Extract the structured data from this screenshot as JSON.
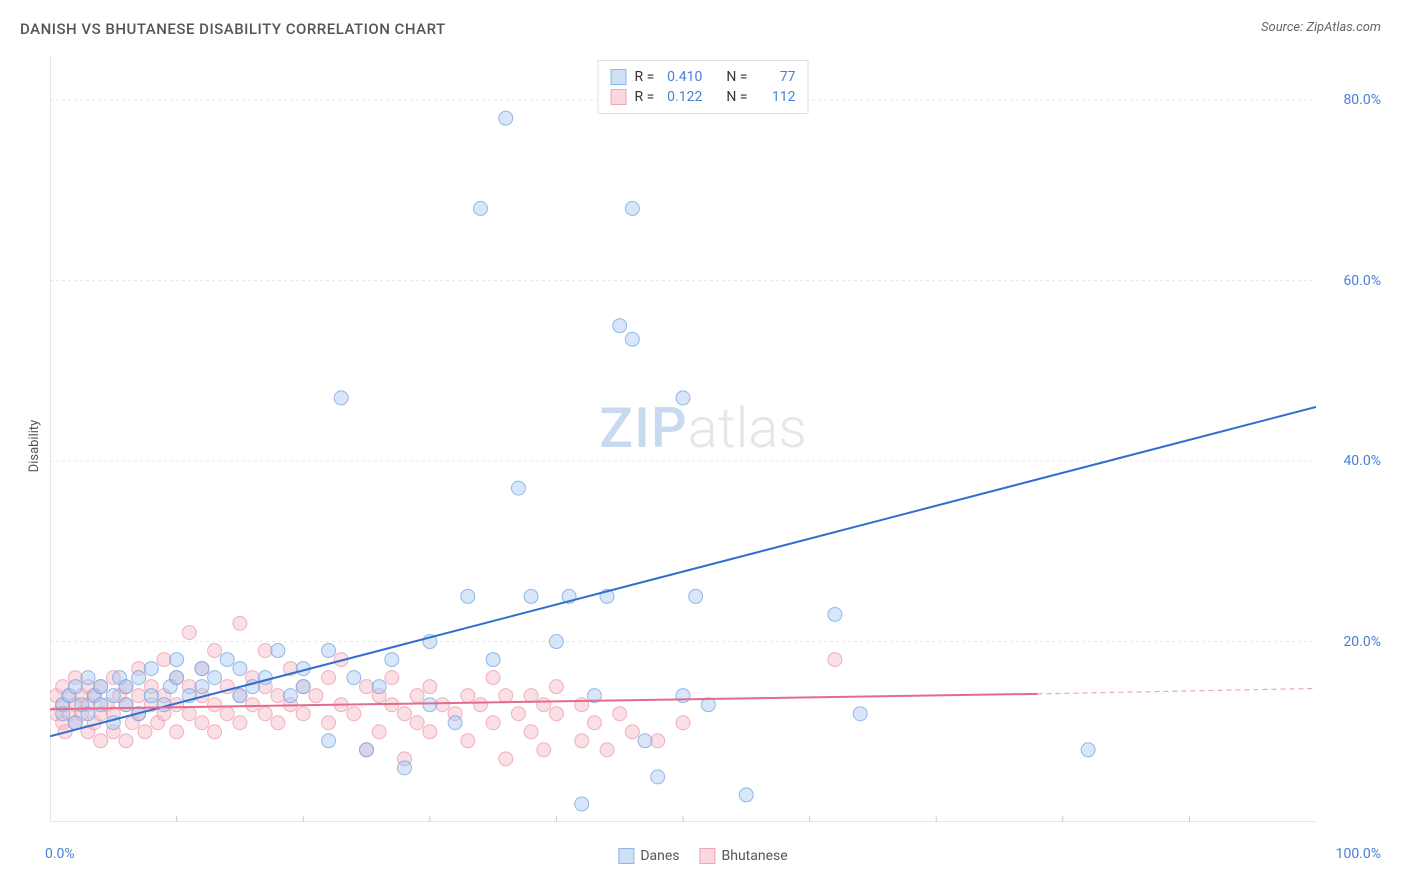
{
  "title": "DANISH VS BHUTANESE DISABILITY CORRELATION CHART",
  "source_label": "Source: ZipAtlas.com",
  "ylabel": "Disability",
  "watermark": {
    "part1": "ZIP",
    "part2": "atlas"
  },
  "chart": {
    "type": "scatter",
    "xlim": [
      0,
      100
    ],
    "ylim": [
      0,
      85
    ],
    "x_tick_labels": {
      "left": "0.0%",
      "right": "100.0%"
    },
    "x_ticks_minor": [
      10,
      20,
      30,
      40,
      50,
      60,
      70,
      80,
      90
    ],
    "y_ticks": [
      {
        "value": 20,
        "label": "20.0%"
      },
      {
        "value": 40,
        "label": "40.0%"
      },
      {
        "value": 60,
        "label": "60.0%"
      },
      {
        "value": 80,
        "label": "80.0%"
      }
    ],
    "grid_color": "#e8e8e8",
    "grid_dash": "3,3",
    "axis_color": "#cccccc",
    "background": "#ffffff",
    "tick_label_color": "#4a7fd6",
    "marker_radius": 7,
    "marker_opacity": 0.45,
    "line_width": 2,
    "series": [
      {
        "name": "Danes",
        "short": "Danes",
        "color_fill": "#a7c7f2",
        "color_stroke": "#6da0e0",
        "line_color": "#2f6fd0",
        "swatch_fill": "#cfe0f7",
        "swatch_border": "#8fb5e8",
        "R": "0.410",
        "N": "77",
        "trend": {
          "x1": 0,
          "y1": 9.5,
          "x2": 100,
          "y2": 46,
          "dash_from_x": 100
        },
        "points": [
          [
            1,
            13
          ],
          [
            1,
            12
          ],
          [
            1.5,
            14
          ],
          [
            2,
            11
          ],
          [
            2,
            15
          ],
          [
            2.5,
            13
          ],
          [
            3,
            12
          ],
          [
            3,
            16
          ],
          [
            3.5,
            14
          ],
          [
            4,
            13
          ],
          [
            4,
            15
          ],
          [
            5,
            11
          ],
          [
            5,
            14
          ],
          [
            5.5,
            16
          ],
          [
            6,
            13
          ],
          [
            6,
            15
          ],
          [
            7,
            12
          ],
          [
            7,
            16
          ],
          [
            8,
            14
          ],
          [
            8,
            17
          ],
          [
            9,
            13
          ],
          [
            9.5,
            15
          ],
          [
            10,
            16
          ],
          [
            10,
            18
          ],
          [
            11,
            14
          ],
          [
            12,
            17
          ],
          [
            12,
            15
          ],
          [
            13,
            16
          ],
          [
            14,
            18
          ],
          [
            15,
            14
          ],
          [
            15,
            17
          ],
          [
            16,
            15
          ],
          [
            17,
            16
          ],
          [
            18,
            19
          ],
          [
            19,
            14
          ],
          [
            20,
            17
          ],
          [
            20,
            15
          ],
          [
            22,
            19
          ],
          [
            22,
            9
          ],
          [
            23,
            47
          ],
          [
            24,
            16
          ],
          [
            25,
            8
          ],
          [
            26,
            15
          ],
          [
            27,
            18
          ],
          [
            28,
            6
          ],
          [
            30,
            13
          ],
          [
            30,
            20
          ],
          [
            32,
            11
          ],
          [
            33,
            25
          ],
          [
            34,
            68
          ],
          [
            35,
            18
          ],
          [
            36,
            78
          ],
          [
            37,
            37
          ],
          [
            38,
            25
          ],
          [
            40,
            20
          ],
          [
            41,
            25
          ],
          [
            42,
            2
          ],
          [
            43,
            14
          ],
          [
            44,
            25
          ],
          [
            45,
            55
          ],
          [
            46,
            53.5
          ],
          [
            46,
            68
          ],
          [
            47,
            9
          ],
          [
            48,
            5
          ],
          [
            50,
            47
          ],
          [
            50,
            14
          ],
          [
            51,
            25
          ],
          [
            52,
            13
          ],
          [
            55,
            3
          ],
          [
            62,
            23
          ],
          [
            64,
            12
          ],
          [
            82,
            8
          ]
        ]
      },
      {
        "name": "Bhutanese",
        "short": "Bhutanese",
        "color_fill": "#f5b8c6",
        "color_stroke": "#e996ab",
        "line_color": "#e56b8a",
        "swatch_fill": "#fad6df",
        "swatch_border": "#f0a6b9",
        "R": "0.122",
        "N": "112",
        "trend": {
          "x1": 0,
          "y1": 12.5,
          "x2": 78,
          "y2": 14.2,
          "dash_from_x": 78,
          "dash_x2": 100,
          "dash_y2": 14.8
        },
        "points": [
          [
            0.5,
            12
          ],
          [
            0.5,
            14
          ],
          [
            1,
            11
          ],
          [
            1,
            13
          ],
          [
            1,
            15
          ],
          [
            1.2,
            10
          ],
          [
            1.5,
            12
          ],
          [
            1.5,
            14
          ],
          [
            2,
            11
          ],
          [
            2,
            13
          ],
          [
            2,
            16
          ],
          [
            2.5,
            12
          ],
          [
            2.5,
            14
          ],
          [
            3,
            10
          ],
          [
            3,
            13
          ],
          [
            3,
            15
          ],
          [
            3.5,
            11
          ],
          [
            3.5,
            14
          ],
          [
            4,
            9
          ],
          [
            4,
            12
          ],
          [
            4,
            15
          ],
          [
            4.5,
            13
          ],
          [
            5,
            10
          ],
          [
            5,
            12
          ],
          [
            5,
            16
          ],
          [
            5.5,
            14
          ],
          [
            6,
            9
          ],
          [
            6,
            13
          ],
          [
            6,
            15
          ],
          [
            6.5,
            11
          ],
          [
            7,
            12
          ],
          [
            7,
            14
          ],
          [
            7,
            17
          ],
          [
            7.5,
            10
          ],
          [
            8,
            13
          ],
          [
            8,
            15
          ],
          [
            8.5,
            11
          ],
          [
            9,
            12
          ],
          [
            9,
            14
          ],
          [
            9,
            18
          ],
          [
            10,
            10
          ],
          [
            10,
            13
          ],
          [
            10,
            16
          ],
          [
            11,
            12
          ],
          [
            11,
            15
          ],
          [
            11,
            21
          ],
          [
            12,
            11
          ],
          [
            12,
            14
          ],
          [
            12,
            17
          ],
          [
            13,
            10
          ],
          [
            13,
            13
          ],
          [
            13,
            19
          ],
          [
            14,
            12
          ],
          [
            14,
            15
          ],
          [
            15,
            11
          ],
          [
            15,
            14
          ],
          [
            15,
            22
          ],
          [
            16,
            13
          ],
          [
            16,
            16
          ],
          [
            17,
            12
          ],
          [
            17,
            15
          ],
          [
            17,
            19
          ],
          [
            18,
            11
          ],
          [
            18,
            14
          ],
          [
            19,
            13
          ],
          [
            19,
            17
          ],
          [
            20,
            12
          ],
          [
            20,
            15
          ],
          [
            21,
            14
          ],
          [
            22,
            11
          ],
          [
            22,
            16
          ],
          [
            23,
            13
          ],
          [
            23,
            18
          ],
          [
            24,
            12
          ],
          [
            25,
            15
          ],
          [
            25,
            8
          ],
          [
            26,
            10
          ],
          [
            26,
            14
          ],
          [
            27,
            13
          ],
          [
            27,
            16
          ],
          [
            28,
            12
          ],
          [
            28,
            7
          ],
          [
            29,
            14
          ],
          [
            29,
            11
          ],
          [
            30,
            10
          ],
          [
            30,
            15
          ],
          [
            31,
            13
          ],
          [
            32,
            12
          ],
          [
            33,
            14
          ],
          [
            33,
            9
          ],
          [
            34,
            13
          ],
          [
            35,
            11
          ],
          [
            35,
            16
          ],
          [
            36,
            14
          ],
          [
            36,
            7
          ],
          [
            37,
            12
          ],
          [
            38,
            10
          ],
          [
            38,
            14
          ],
          [
            39,
            13
          ],
          [
            39,
            8
          ],
          [
            40,
            12
          ],
          [
            40,
            15
          ],
          [
            42,
            9
          ],
          [
            42,
            13
          ],
          [
            43,
            11
          ],
          [
            44,
            8
          ],
          [
            45,
            12
          ],
          [
            46,
            10
          ],
          [
            48,
            9
          ],
          [
            50,
            11
          ],
          [
            62,
            18
          ]
        ]
      }
    ]
  },
  "legend_top_labels": {
    "R_prefix": "R =",
    "N_prefix": "N ="
  },
  "legend_bottom": [
    {
      "label": "Danes",
      "series_index": 0
    },
    {
      "label": "Bhutanese",
      "series_index": 1
    }
  ]
}
